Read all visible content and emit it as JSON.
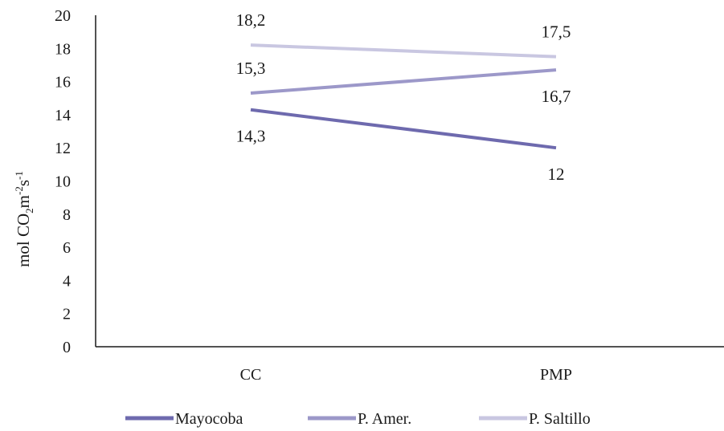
{
  "chart_data": {
    "type": "line",
    "categories": [
      "CC",
      "PMP"
    ],
    "series": [
      {
        "name": "Mayocoba",
        "values": [
          14.3,
          12
        ],
        "labels": [
          "14,3",
          "12"
        ],
        "label_pos": [
          "below",
          "below"
        ],
        "color": "#6e6aae"
      },
      {
        "name": "P. Amer.",
        "values": [
          15.3,
          16.7
        ],
        "labels": [
          "15,3",
          "16,7"
        ],
        "label_pos": [
          "above",
          "below"
        ],
        "color": "#9c98c9"
      },
      {
        "name": "P. Saltillo",
        "values": [
          18.2,
          17.5
        ],
        "labels": [
          "18,2",
          "17,5"
        ],
        "label_pos": [
          "above",
          "above"
        ],
        "color": "#c9c7e1"
      }
    ],
    "ylim": [
      0,
      20
    ],
    "yticks": [
      0,
      2,
      4,
      6,
      8,
      10,
      12,
      14,
      16,
      18,
      20
    ],
    "ylabel": {
      "base": "mol CO",
      "sub": "2",
      "mid": "m",
      "sup1": "-2",
      "mid2": "s",
      "sup2": "-1"
    },
    "legend_position": "bottom",
    "grid": false
  }
}
